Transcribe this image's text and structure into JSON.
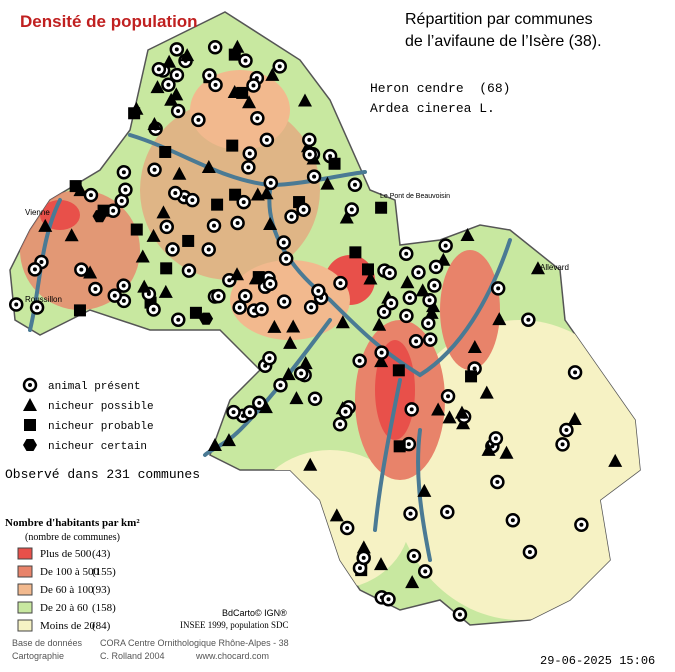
{
  "header": {
    "title": "Densité de population",
    "subtitle": [
      "Répartition par communes",
      "de l’avifaune de l’Isère (38)."
    ]
  },
  "species": {
    "common": "Heron cendre  (68)",
    "latin": "Ardea cinerea L."
  },
  "legend": {
    "symbols": [
      "animal présent",
      "nicheur possible",
      "nicheur probable",
      "nicheur certain"
    ]
  },
  "observed": "Observé dans 231 communes",
  "density": {
    "title": "Nombre d'habitants par km²",
    "subtitle": "(nombre de communes)",
    "rows": [
      {
        "label": "Plus de 500",
        "count": "(43)",
        "color": "#e8504a"
      },
      {
        "label": "De 100 à 500",
        "count": "(155)",
        "color": "#e8836a"
      },
      {
        "label": "De 60 à 100",
        "count": "(93)",
        "color": "#f2b98e"
      },
      {
        "label": "De 20 à 60",
        "count": "(158)",
        "color": "#c8e8a0"
      },
      {
        "label": "Moins de 20",
        "count": "(84)",
        "color": "#f6f2c4"
      }
    ]
  },
  "sources": {
    "bdcarto": "BdCarto© IGN®",
    "insee": "INSEE 1999, population SDC"
  },
  "credits": {
    "db_label": "Base de données",
    "db": "CORA Centre Ornithologique Rhône-Alpes - 38",
    "carto_label": "Cartographie",
    "carto": "C. Rolland 2004",
    "site": "www.chocard.com"
  },
  "places": [
    "Vienne",
    "Roussillon",
    "Le Pont de Beauvoisin",
    "Allevard"
  ],
  "timestamp": "29-06-2025 15:06"
}
